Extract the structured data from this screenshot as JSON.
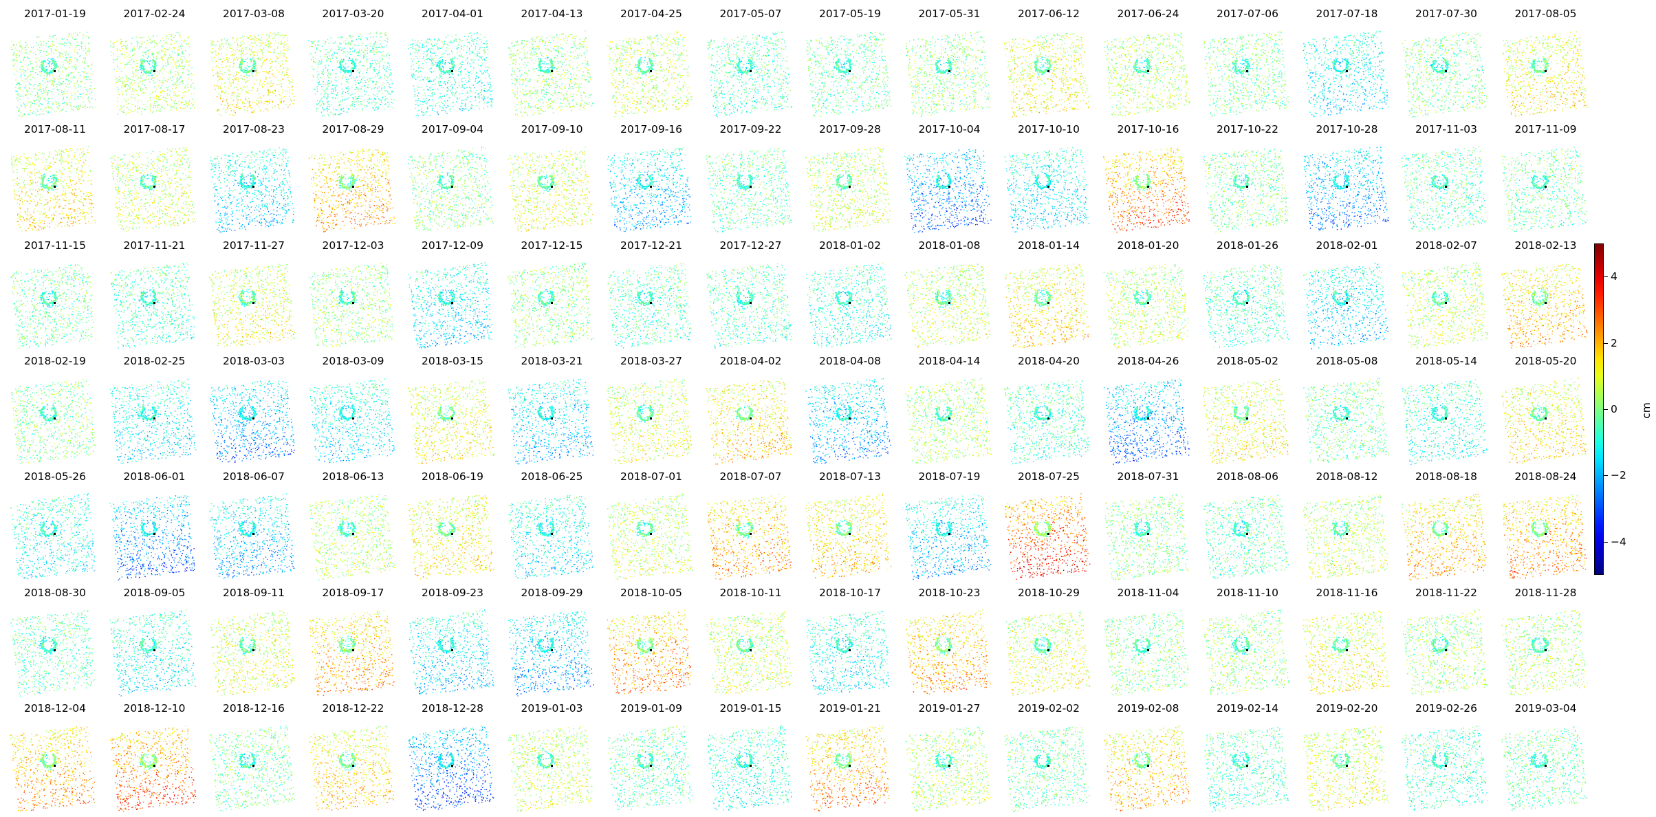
{
  "chart_data": {
    "type": "heatmap",
    "subplot_titles": [
      "2017-01-19",
      "2017-02-24",
      "2017-03-08",
      "2017-03-20",
      "2017-04-01",
      "2017-04-13",
      "2017-04-25",
      "2017-05-07",
      "2017-05-19",
      "2017-05-31",
      "2017-06-12",
      "2017-06-24",
      "2017-07-06",
      "2017-07-18",
      "2017-07-30",
      "2017-08-05",
      "2017-08-11",
      "2017-08-17",
      "2017-08-23",
      "2017-08-29",
      "2017-09-04",
      "2017-09-10",
      "2017-09-16",
      "2017-09-22",
      "2017-09-28",
      "2017-10-04",
      "2017-10-10",
      "2017-10-16",
      "2017-10-22",
      "2017-10-28",
      "2017-11-03",
      "2017-11-09",
      "2017-11-15",
      "2017-11-21",
      "2017-11-27",
      "2017-12-03",
      "2017-12-09",
      "2017-12-15",
      "2017-12-21",
      "2017-12-27",
      "2018-01-02",
      "2018-01-08",
      "2018-01-14",
      "2018-01-20",
      "2018-01-26",
      "2018-02-01",
      "2018-02-07",
      "2018-02-13",
      "2018-02-19",
      "2018-02-25",
      "2018-03-03",
      "2018-03-09",
      "2018-03-15",
      "2018-03-21",
      "2018-03-27",
      "2018-04-02",
      "2018-04-08",
      "2018-04-14",
      "2018-04-20",
      "2018-04-26",
      "2018-05-02",
      "2018-05-08",
      "2018-05-14",
      "2018-05-20",
      "2018-05-26",
      "2018-06-01",
      "2018-06-07",
      "2018-06-13",
      "2018-06-19",
      "2018-06-25",
      "2018-07-01",
      "2018-07-07",
      "2018-07-13",
      "2018-07-19",
      "2018-07-25",
      "2018-07-31",
      "2018-08-06",
      "2018-08-12",
      "2018-08-18",
      "2018-08-24",
      "2018-08-30",
      "2018-09-05",
      "2018-09-11",
      "2018-09-17",
      "2018-09-23",
      "2018-09-29",
      "2018-10-05",
      "2018-10-11",
      "2018-10-17",
      "2018-10-23",
      "2018-10-29",
      "2018-11-04",
      "2018-11-10",
      "2018-11-16",
      "2018-11-22",
      "2018-11-28",
      "2018-12-04",
      "2018-12-10",
      "2018-12-16",
      "2018-12-22",
      "2018-12-28",
      "2019-01-03",
      "2019-01-09",
      "2019-01-15",
      "2019-01-21",
      "2019-01-27",
      "2019-02-02",
      "2019-02-08",
      "2019-02-14",
      "2019-02-20",
      "2019-02-26",
      "2019-03-04"
    ],
    "panel_mean_cm": [
      0.0,
      0.4,
      1.0,
      -0.6,
      -0.8,
      0.2,
      0.6,
      -0.5,
      -0.3,
      0.1,
      1.0,
      0.4,
      -0.1,
      -1.2,
      0.0,
      1.1,
      1.2,
      0.6,
      -1.4,
      1.8,
      0.0,
      0.8,
      -1.6,
      -0.3,
      0.6,
      -2.2,
      -1.3,
      2.2,
      -0.1,
      -2.0,
      -0.4,
      -0.2,
      -0.2,
      -0.6,
      0.9,
      0.2,
      -1.3,
      0.1,
      -0.5,
      -0.5,
      -0.8,
      0.6,
      1.3,
      0.5,
      -0.6,
      -1.4,
      0.5,
      1.6,
      0.0,
      -1.2,
      -2.0,
      -1.2,
      1.0,
      -1.6,
      0.8,
      1.4,
      -1.8,
      0.3,
      -0.6,
      -2.2,
      1.0,
      -0.2,
      -0.8,
      1.2,
      -1.0,
      -2.2,
      -1.6,
      0.4,
      1.2,
      -1.2,
      0.6,
      1.8,
      1.4,
      -1.6,
      2.8,
      0.0,
      -0.4,
      0.6,
      1.6,
      2.0,
      -0.4,
      -1.0,
      0.8,
      1.8,
      -1.4,
      -1.8,
      2.0,
      0.6,
      -1.0,
      1.8,
      0.8,
      0.0,
      0.2,
      1.0,
      0.2,
      0.4,
      1.8,
      2.4,
      -0.2,
      1.4,
      -2.4,
      0.6,
      -0.4,
      -0.8,
      2.0,
      0.4,
      -0.3,
      1.6,
      -0.5,
      0.8,
      -0.6,
      -0.3
    ],
    "grid": "off",
    "colorscale": "jet",
    "clim": [
      -5,
      5
    ],
    "colorbar": {
      "ticks": [
        4,
        2,
        0,
        -2,
        -4
      ],
      "tick_labels": [
        "4",
        "2",
        "0",
        "−2",
        "−4"
      ],
      "label": "cm"
    }
  }
}
